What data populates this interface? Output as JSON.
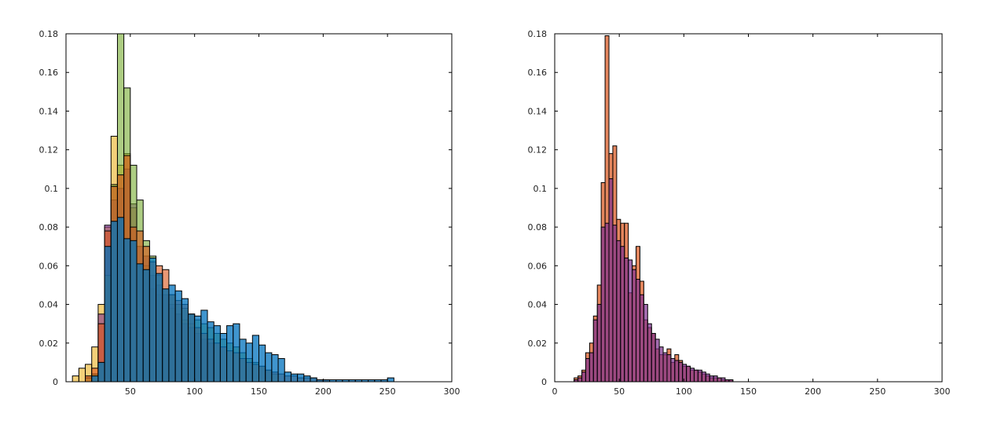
{
  "chart_data": [
    {
      "type": "bar",
      "subtype": "histogram-overlay",
      "title": "",
      "xlabel": "",
      "ylabel": "",
      "xlim": [
        0,
        300
      ],
      "ylim": [
        0,
        0.18
      ],
      "xticks": [
        50,
        100,
        150,
        200,
        250,
        300
      ],
      "yticks": [
        0,
        0.02,
        0.04,
        0.06,
        0.08,
        0.1,
        0.12,
        0.14,
        0.16,
        0.18
      ],
      "ytick_labels": [
        "0",
        "0.02",
        "0.04",
        "0.06",
        "0.08",
        "0.1",
        "0.12",
        "0.14",
        "0.16",
        "0.18"
      ],
      "grid": false,
      "legend": "none",
      "bin_width": 5,
      "series": [
        {
          "color": "#EDB120",
          "opacity": 0.6,
          "x": [
            5,
            10,
            15,
            20,
            25,
            30,
            35,
            40,
            45,
            50,
            55,
            60,
            65,
            70,
            75,
            80,
            85,
            90,
            95,
            100,
            105,
            110
          ],
          "values": [
            0.003,
            0.007,
            0.009,
            0.018,
            0.04,
            0.08,
            0.127,
            0.112,
            0.118,
            0.09,
            0.06,
            0.06,
            0.048,
            0.045,
            0.045,
            0.038,
            0.035,
            0.032,
            0.03,
            0.028,
            0.025,
            0.02
          ]
        },
        {
          "color": "#7E2F8E",
          "opacity": 0.6,
          "x": [
            25,
            30,
            35,
            40,
            45,
            50,
            55,
            60,
            65,
            70,
            75,
            80,
            85,
            90,
            95,
            100,
            105,
            110
          ],
          "values": [
            0.035,
            0.081,
            0.094,
            0.1,
            0.11,
            0.092,
            0.07,
            0.065,
            0.055,
            0.05,
            0.045,
            0.04,
            0.035,
            0.03,
            0.028,
            0.025,
            0.022,
            0.02
          ]
        },
        {
          "color": "#77AC30",
          "opacity": 0.6,
          "x": [
            15,
            20,
            25,
            30,
            35,
            40,
            45,
            50,
            55,
            60,
            65,
            70,
            75,
            80,
            85,
            90,
            95,
            100,
            105,
            110,
            115,
            120,
            125,
            130,
            135,
            140,
            145,
            150,
            155,
            160
          ],
          "values": [
            0.002,
            0.004,
            0.01,
            0.055,
            0.102,
            0.18,
            0.152,
            0.112,
            0.094,
            0.073,
            0.065,
            0.055,
            0.048,
            0.045,
            0.04,
            0.038,
            0.035,
            0.032,
            0.03,
            0.028,
            0.025,
            0.022,
            0.02,
            0.018,
            0.015,
            0.012,
            0.01,
            0.008,
            0.006,
            0.004
          ]
        },
        {
          "color": "#D95319",
          "opacity": 0.6,
          "x": [
            15,
            20,
            25,
            30,
            35,
            40,
            45,
            50,
            55,
            60,
            65,
            70,
            75,
            80,
            85,
            90,
            95,
            100,
            105,
            110,
            115,
            120,
            125,
            130,
            135,
            140,
            145,
            150,
            155,
            160,
            165,
            170,
            175,
            180,
            185,
            190,
            195,
            200
          ],
          "values": [
            0.003,
            0.007,
            0.03,
            0.078,
            0.101,
            0.107,
            0.117,
            0.08,
            0.078,
            0.07,
            0.062,
            0.06,
            0.058,
            0.045,
            0.042,
            0.04,
            0.035,
            0.028,
            0.025,
            0.022,
            0.02,
            0.018,
            0.016,
            0.015,
            0.012,
            0.01,
            0.009,
            0.008,
            0.006,
            0.005,
            0.004,
            0.003,
            0.003,
            0.002,
            0.002,
            0.002,
            0.001,
            0.001
          ]
        },
        {
          "color": "#0072BD",
          "opacity": 0.75,
          "x": [
            20,
            25,
            30,
            35,
            40,
            45,
            50,
            55,
            60,
            65,
            70,
            75,
            80,
            85,
            90,
            95,
            100,
            105,
            110,
            115,
            120,
            125,
            130,
            135,
            140,
            145,
            150,
            155,
            160,
            165,
            170,
            175,
            180,
            185,
            190,
            195,
            200,
            205,
            210,
            215,
            220,
            225,
            230,
            235,
            240,
            245,
            250
          ],
          "values": [
            0.003,
            0.01,
            0.07,
            0.083,
            0.085,
            0.074,
            0.073,
            0.061,
            0.058,
            0.064,
            0.056,
            0.048,
            0.05,
            0.047,
            0.043,
            0.035,
            0.034,
            0.037,
            0.031,
            0.029,
            0.025,
            0.029,
            0.03,
            0.022,
            0.02,
            0.024,
            0.019,
            0.015,
            0.014,
            0.012,
            0.005,
            0.004,
            0.004,
            0.003,
            0.002,
            0.001,
            0.001,
            0.001,
            0.001,
            0.001,
            0.001,
            0.001,
            0.001,
            0.001,
            0.001,
            0.001,
            0.002
          ]
        }
      ]
    },
    {
      "type": "bar",
      "subtype": "histogram-overlay",
      "title": "",
      "xlabel": "",
      "ylabel": "",
      "xlim": [
        0,
        300
      ],
      "ylim": [
        0,
        0.18
      ],
      "xticks": [
        0,
        50,
        100,
        150,
        200,
        250,
        300
      ],
      "yticks": [
        0,
        0.02,
        0.04,
        0.06,
        0.08,
        0.1,
        0.12,
        0.14,
        0.16,
        0.18
      ],
      "ytick_labels": [
        "0",
        "0.02",
        "0.04",
        "0.06",
        "0.08",
        "0.1",
        "0.12",
        "0.14",
        "0.16",
        "0.18"
      ],
      "grid": false,
      "legend": "none",
      "bin_width": 3,
      "series": [
        {
          "color": "#D95319",
          "opacity": 0.7,
          "x": [
            15,
            18,
            21,
            24,
            27,
            30,
            33,
            36,
            39,
            42,
            45,
            48,
            51,
            54,
            57,
            60,
            63,
            66,
            69,
            72,
            75,
            78,
            81,
            84,
            87,
            90,
            93,
            96,
            99,
            102,
            105,
            108,
            111,
            114,
            117,
            120,
            123,
            126,
            129,
            132,
            135
          ],
          "values": [
            0.002,
            0.003,
            0.006,
            0.015,
            0.02,
            0.034,
            0.05,
            0.103,
            0.179,
            0.118,
            0.122,
            0.084,
            0.082,
            0.082,
            0.046,
            0.06,
            0.07,
            0.052,
            0.032,
            0.028,
            0.025,
            0.017,
            0.014,
            0.014,
            0.017,
            0.01,
            0.014,
            0.011,
            0.008,
            0.008,
            0.006,
            0.006,
            0.005,
            0.004,
            0.003,
            0.002,
            0.002,
            0.002,
            0.001,
            0.001,
            0.001
          ]
        },
        {
          "color": "#7E2F8E",
          "opacity": 0.7,
          "x": [
            15,
            18,
            21,
            24,
            27,
            30,
            33,
            36,
            39,
            42,
            45,
            48,
            51,
            54,
            57,
            60,
            63,
            66,
            69,
            72,
            75,
            78,
            81,
            84,
            87,
            90,
            93,
            96,
            99,
            102,
            105,
            108,
            111,
            114,
            117,
            120,
            123,
            126,
            129,
            132,
            135
          ],
          "values": [
            0.001,
            0.002,
            0.005,
            0.012,
            0.015,
            0.032,
            0.04,
            0.08,
            0.082,
            0.105,
            0.081,
            0.073,
            0.07,
            0.064,
            0.063,
            0.058,
            0.053,
            0.045,
            0.04,
            0.03,
            0.025,
            0.022,
            0.018,
            0.015,
            0.014,
            0.012,
            0.011,
            0.01,
            0.009,
            0.008,
            0.007,
            0.006,
            0.006,
            0.005,
            0.004,
            0.003,
            0.003,
            0.002,
            0.002,
            0.001,
            0.001
          ]
        }
      ]
    }
  ]
}
